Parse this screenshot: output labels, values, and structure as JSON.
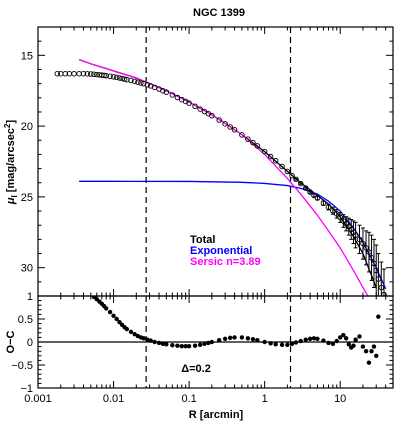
{
  "chart_data": [
    {
      "type": "line",
      "panel": "profile",
      "title": "NGC 1399",
      "xlabel": "",
      "ylabel": "μ_I [mag/arcsec²]",
      "ylabel_main": "μ",
      "ylabel_sub": "I",
      "ylabel_rest": " [mag/arcsec",
      "ylabel_sup": "2",
      "ylabel_end": "]",
      "x_scale": "log",
      "xlim": [
        0.001,
        50
      ],
      "ylim": [
        32,
        13
      ],
      "y_inverted": true,
      "y_ticks": [
        15,
        20,
        25,
        30
      ],
      "y_tick_labels": [
        "15",
        "20",
        "25",
        "30"
      ],
      "vlines_dashed": [
        0.027,
        2.2
      ],
      "legend": {
        "position": "lower-center",
        "entries": [
          {
            "label": "Total",
            "color": "#000000"
          },
          {
            "label": "Exponential",
            "color": "#0000ff"
          },
          {
            "label": "Sersic n=3.89",
            "color": "#ff00ff"
          }
        ]
      },
      "series": [
        {
          "name": "Total",
          "role": "model",
          "color": "#000000",
          "x": [
            0.0035,
            0.005,
            0.01,
            0.02,
            0.03,
            0.05,
            0.1,
            0.2,
            0.3,
            0.5,
            1,
            2,
            3,
            5,
            7,
            10,
            15,
            20,
            30
          ],
          "y": [
            15.3,
            15.6,
            16.1,
            16.6,
            17.0,
            17.5,
            18.3,
            19.2,
            19.8,
            20.6,
            21.8,
            23.2,
            24.0,
            24.9,
            25.5,
            26.4,
            27.8,
            29.0,
            31.4
          ]
        },
        {
          "name": "Exponential",
          "role": "model",
          "color": "#0000ff",
          "x": [
            0.0035,
            0.01,
            0.1,
            0.5,
            1,
            2,
            3,
            5,
            7,
            10,
            15,
            20,
            30,
            40
          ],
          "y": [
            23.9,
            23.9,
            23.91,
            23.97,
            24.05,
            24.2,
            24.4,
            24.8,
            25.3,
            26.0,
            27.2,
            28.2,
            30.0,
            31.5
          ]
        },
        {
          "name": "Sersic n=3.89",
          "role": "model",
          "color": "#ff00ff",
          "x": [
            0.0035,
            0.005,
            0.01,
            0.02,
            0.03,
            0.05,
            0.1,
            0.2,
            0.3,
            0.5,
            1,
            2,
            3,
            5,
            7,
            10,
            15,
            20,
            25
          ],
          "y": [
            15.3,
            15.6,
            16.1,
            16.6,
            17.0,
            17.5,
            18.3,
            19.2,
            19.8,
            20.6,
            22.0,
            23.7,
            24.8,
            26.3,
            27.4,
            28.6,
            30.2,
            31.4,
            32.3
          ]
        },
        {
          "name": "",
          "role": "observed",
          "color": "#000000",
          "x": [
            0.0018,
            0.002,
            0.0023,
            0.0026,
            0.003,
            0.0035,
            0.004,
            0.0045,
            0.005,
            0.0055,
            0.006,
            0.0065,
            0.007,
            0.0075,
            0.008,
            0.009,
            0.01,
            0.011,
            0.012,
            0.013,
            0.014,
            0.015,
            0.017,
            0.019,
            0.021,
            0.023,
            0.025,
            0.028,
            0.031,
            0.035,
            0.04,
            0.045,
            0.05,
            0.06,
            0.07,
            0.08,
            0.09,
            0.1,
            0.12,
            0.14,
            0.16,
            0.18,
            0.2,
            0.25,
            0.3,
            0.35,
            0.4,
            0.5,
            0.6,
            0.7,
            0.8,
            1,
            1.2,
            1.4,
            1.7,
            2,
            2.3,
            2.6,
            3,
            3.5,
            4,
            4.5,
            5,
            6,
            7,
            8,
            9,
            10,
            11,
            12,
            13,
            14,
            15,
            16,
            18,
            20,
            22,
            24,
            26,
            28,
            30,
            32,
            35,
            38
          ],
          "y": [
            16.3,
            16.3,
            16.3,
            16.3,
            16.3,
            16.3,
            16.3,
            16.31,
            16.32,
            16.34,
            16.36,
            16.38,
            16.4,
            16.42,
            16.44,
            16.48,
            16.52,
            16.56,
            16.6,
            16.64,
            16.68,
            16.72,
            16.78,
            16.84,
            16.9,
            16.96,
            17.0,
            17.08,
            17.16,
            17.26,
            17.38,
            17.5,
            17.6,
            17.8,
            17.98,
            18.13,
            18.26,
            18.38,
            18.6,
            18.8,
            18.97,
            19.12,
            19.26,
            19.57,
            19.84,
            20.06,
            20.26,
            20.62,
            20.92,
            21.17,
            21.4,
            21.8,
            22.15,
            22.45,
            22.85,
            23.2,
            23.5,
            23.76,
            24.06,
            24.38,
            24.66,
            24.9,
            25.08,
            25.44,
            25.72,
            25.98,
            26.2,
            26.45,
            26.7,
            26.9,
            27.1,
            27.3,
            27.5,
            27.7,
            28.0,
            28.3,
            28.6,
            28.9,
            29.3,
            29.7,
            30.2,
            30.8,
            31.4,
            31.9
          ],
          "yerr": [
            0,
            0,
            0,
            0,
            0,
            0,
            0,
            0,
            0,
            0,
            0,
            0,
            0,
            0,
            0,
            0,
            0,
            0,
            0,
            0,
            0,
            0,
            0,
            0,
            0,
            0,
            0,
            0,
            0,
            0,
            0,
            0,
            0,
            0,
            0,
            0,
            0,
            0,
            0,
            0,
            0,
            0,
            0,
            0,
            0,
            0,
            0,
            0,
            0,
            0,
            0,
            0,
            0,
            0,
            0,
            0,
            0,
            0.05,
            0.05,
            0.06,
            0.08,
            0.1,
            0.12,
            0.15,
            0.2,
            0.25,
            0.3,
            0.35,
            0.45,
            0.5,
            0.6,
            0.7,
            0.8,
            0.9,
            1.0,
            1.1,
            1.2,
            1.4,
            1.6,
            1.7,
            1.8,
            1.8,
            1.8,
            1.8
          ]
        }
      ]
    },
    {
      "type": "scatter",
      "panel": "residuals",
      "xlabel": "R [arcmin]",
      "ylabel": "O−C",
      "x_scale": "log",
      "xlim": [
        0.001,
        50
      ],
      "ylim": [
        -1,
        1
      ],
      "x_ticks": [
        0.001,
        0.01,
        0.1,
        1,
        10
      ],
      "x_tick_labels": [
        "0.001",
        "0.01",
        "0.1",
        "1",
        "10"
      ],
      "y_ticks": [
        -1,
        -0.5,
        0,
        0.5,
        1
      ],
      "y_tick_labels": [
        "−1",
        "−0.5",
        "0",
        "0.5",
        "1"
      ],
      "hline": 0,
      "vlines_dashed": [
        0.027,
        2.2
      ],
      "annotation": "Δ=0.2",
      "series": [
        {
          "name": "",
          "color": "#000000",
          "x": [
            0.0055,
            0.006,
            0.0065,
            0.007,
            0.0075,
            0.008,
            0.009,
            0.01,
            0.011,
            0.012,
            0.013,
            0.014,
            0.015,
            0.017,
            0.019,
            0.021,
            0.023,
            0.025,
            0.028,
            0.031,
            0.035,
            0.04,
            0.045,
            0.05,
            0.06,
            0.07,
            0.08,
            0.09,
            0.1,
            0.12,
            0.14,
            0.16,
            0.18,
            0.2,
            0.25,
            0.3,
            0.35,
            0.4,
            0.5,
            0.6,
            0.7,
            0.8,
            1,
            1.2,
            1.4,
            1.7,
            2,
            2.3,
            2.6,
            3,
            3.5,
            4,
            4.5,
            5,
            6,
            7,
            8,
            9,
            10,
            11,
            12,
            13,
            14,
            15,
            16,
            18,
            20,
            22,
            24,
            26,
            28,
            30,
            32
          ],
          "y": [
            0.98,
            0.93,
            0.88,
            0.83,
            0.78,
            0.73,
            0.65,
            0.57,
            0.5,
            0.43,
            0.37,
            0.32,
            0.28,
            0.22,
            0.17,
            0.13,
            0.1,
            0.08,
            0.05,
            0.03,
            0.0,
            -0.02,
            -0.04,
            -0.05,
            -0.07,
            -0.08,
            -0.09,
            -0.09,
            -0.09,
            -0.08,
            -0.06,
            -0.04,
            -0.02,
            0.0,
            0.04,
            0.07,
            0.09,
            0.1,
            0.1,
            0.08,
            0.06,
            0.04,
            0.0,
            -0.03,
            -0.05,
            -0.06,
            -0.06,
            -0.04,
            -0.01,
            0.02,
            0.05,
            0.07,
            0.08,
            0.07,
            0.03,
            -0.02,
            -0.04,
            0.02,
            0.1,
            0.15,
            0.08,
            -0.05,
            -0.12,
            -0.08,
            0.05,
            0.12,
            -0.1,
            -0.2,
            -0.45,
            -0.2,
            -0.1,
            -0.3,
            0.55
          ]
        }
      ]
    }
  ]
}
